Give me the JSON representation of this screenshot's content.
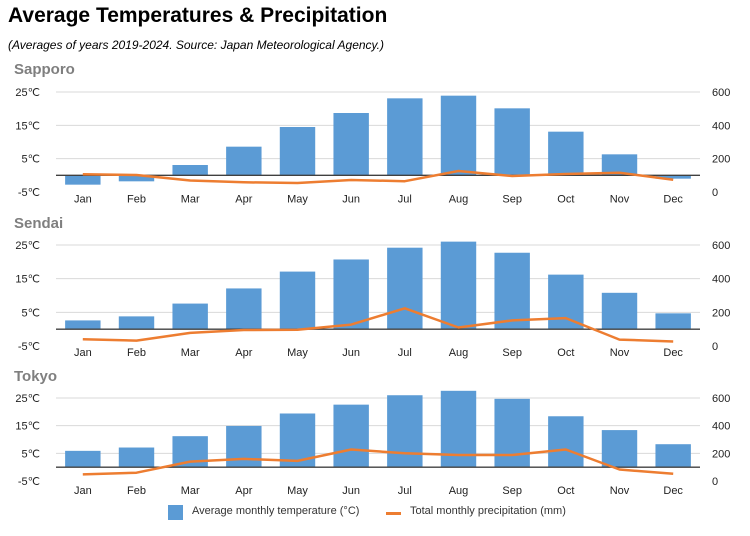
{
  "title": "Average Temperatures & Precipitation",
  "subtitle": "(Averages of years 2019-2024. Source: Japan Meteorological Agency.)",
  "colors": {
    "bar": "#5b9bd5",
    "line": "#ed7d31",
    "panel_title": "#7f7f7f",
    "grid": "#d9d9d9",
    "axis": "#404040"
  },
  "legend": {
    "temperature": "Average monthly temperature (°C)",
    "precipitation": "Total monthly precipitation (mm)"
  },
  "chart_data": [
    {
      "type": "bar",
      "title": "Sapporo",
      "categories": [
        "Jan",
        "Feb",
        "Mar",
        "Apr",
        "May",
        "Jun",
        "Jul",
        "Aug",
        "Sep",
        "Oct",
        "Nov",
        "Dec"
      ],
      "series": [
        {
          "name": "Average monthly temperature (°C)",
          "type": "bar",
          "axis": "left",
          "values": [
            -2.8,
            -1.8,
            3.1,
            8.6,
            14.5,
            18.7,
            23.1,
            23.9,
            20.1,
            13.1,
            6.3,
            -1.0
          ]
        },
        {
          "name": "Total monthly precipitation (mm)",
          "type": "line",
          "axis": "right",
          "values": [
            106,
            102,
            69,
            58,
            54,
            72,
            65,
            126,
            96,
            108,
            116,
            74
          ]
        }
      ],
      "y_left": {
        "ticks": [
          "25℃",
          "15℃",
          "5℃",
          "-5℃"
        ],
        "range": [
          -5,
          25
        ]
      },
      "y_right": {
        "ticks": [
          "600",
          "400",
          "200",
          "0"
        ],
        "range": [
          0,
          600
        ]
      }
    },
    {
      "type": "bar",
      "title": "Sendai",
      "categories": [
        "Jan",
        "Feb",
        "Mar",
        "Apr",
        "May",
        "Jun",
        "Jul",
        "Aug",
        "Sep",
        "Oct",
        "Nov",
        "Dec"
      ],
      "series": [
        {
          "name": "Average monthly temperature (°C)",
          "type": "bar",
          "axis": "left",
          "values": [
            2.6,
            3.8,
            7.6,
            12.1,
            17.1,
            20.7,
            24.2,
            26.0,
            22.7,
            16.2,
            10.8,
            4.7
          ]
        },
        {
          "name": "Total monthly precipitation (mm)",
          "type": "line",
          "axis": "right",
          "values": [
            40,
            32,
            78,
            95,
            96,
            127,
            224,
            110,
            152,
            166,
            38,
            27
          ]
        }
      ],
      "y_left": {
        "ticks": [
          "25℃",
          "15℃",
          "5℃",
          "-5℃"
        ],
        "range": [
          -5,
          25
        ]
      },
      "y_right": {
        "ticks": [
          "600",
          "400",
          "200",
          "0"
        ],
        "range": [
          0,
          600
        ]
      }
    },
    {
      "type": "bar",
      "title": "Tokyo",
      "categories": [
        "Jan",
        "Feb",
        "Mar",
        "Apr",
        "May",
        "Jun",
        "Jul",
        "Aug",
        "Sep",
        "Oct",
        "Nov",
        "Dec"
      ],
      "series": [
        {
          "name": "Average monthly temperature (°C)",
          "type": "bar",
          "axis": "left",
          "values": [
            5.9,
            7.1,
            11.2,
            14.9,
            19.4,
            22.6,
            26.0,
            27.6,
            24.7,
            18.4,
            13.4,
            8.3
          ]
        },
        {
          "name": "Total monthly precipitation (mm)",
          "type": "line",
          "axis": "right",
          "values": [
            48,
            60,
            140,
            160,
            145,
            228,
            200,
            188,
            188,
            228,
            83,
            52
          ]
        }
      ],
      "y_left": {
        "ticks": [
          "25℃",
          "15℃",
          "5℃",
          "-5℃"
        ],
        "range": [
          -5,
          25
        ]
      },
      "y_right": {
        "ticks": [
          "600",
          "400",
          "200",
          "0"
        ],
        "range": [
          0,
          600
        ]
      }
    }
  ]
}
